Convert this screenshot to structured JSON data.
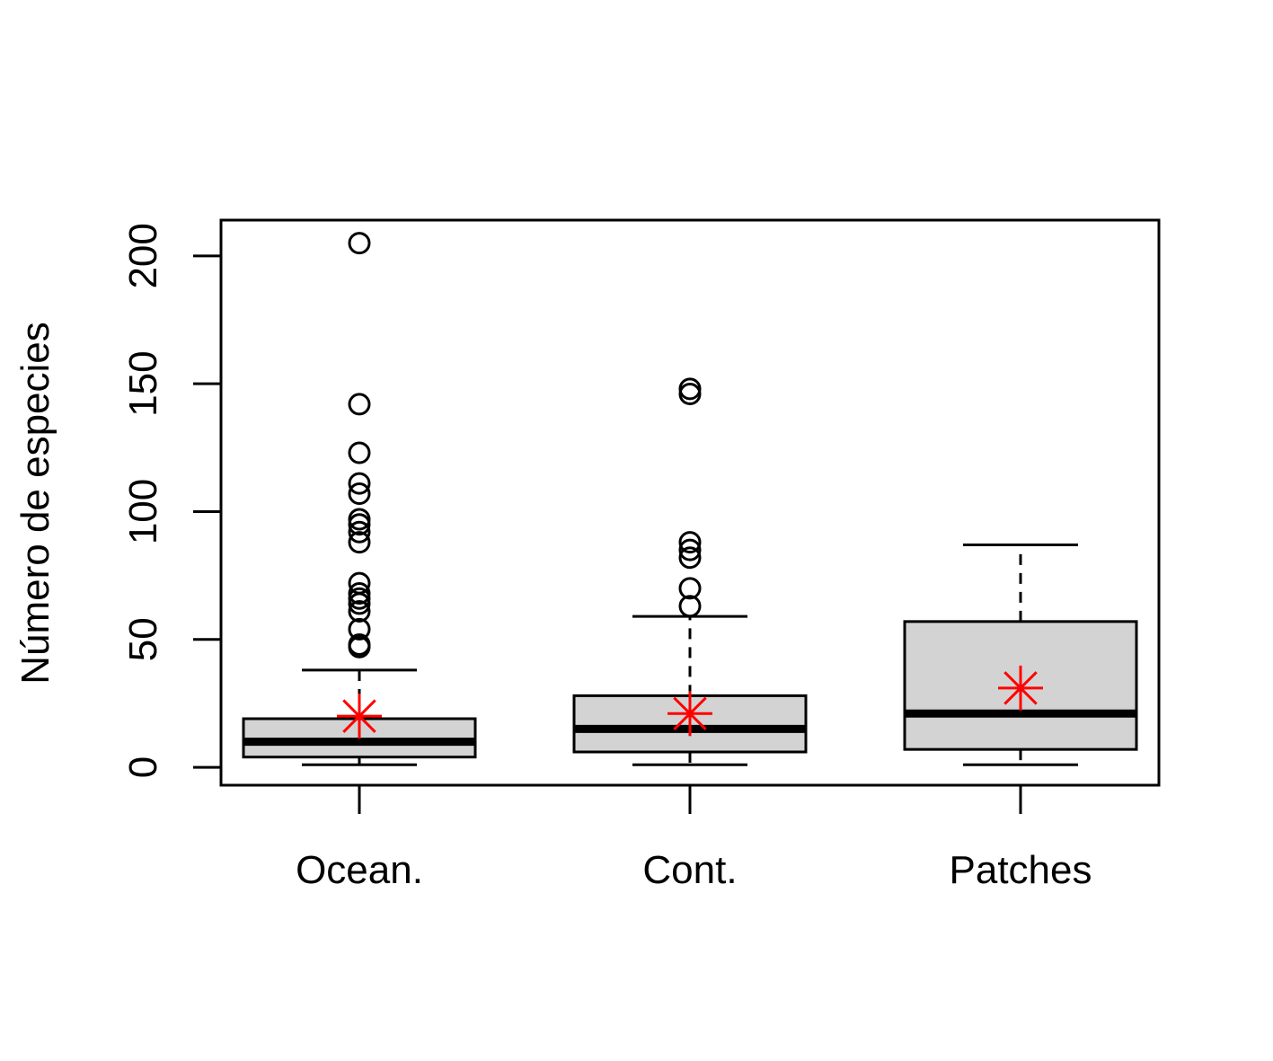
{
  "chart_data": {
    "type": "boxplot",
    "title": "",
    "xlabel": "",
    "ylabel": "Número de especies",
    "ylim": [
      -7,
      214
    ],
    "y_ticks": [
      0,
      50,
      100,
      150,
      200
    ],
    "y_tick_labels": [
      "0",
      "50",
      "100",
      "150",
      "200"
    ],
    "grid": false,
    "legend": "none",
    "categories": [
      "Ocean.",
      "Cont.",
      "Patches"
    ],
    "colors": {
      "box_fill": "#d3d3d3",
      "box_stroke": "#000000",
      "median": "#000000",
      "mean_marker": "#ff0000",
      "outlier": "#000000"
    },
    "series": [
      {
        "category": "Ocean.",
        "whisker_low": 1,
        "q1": 4,
        "median": 10,
        "q3": 19,
        "whisker_high": 38,
        "mean": 20,
        "outliers": [
          205,
          142,
          123,
          111,
          107,
          97,
          95,
          92,
          88,
          72,
          68,
          66,
          64,
          61,
          54,
          48,
          47
        ]
      },
      {
        "category": "Cont.",
        "whisker_low": 1,
        "q1": 6,
        "median": 15,
        "q3": 28,
        "whisker_high": 59,
        "mean": 21,
        "outliers": [
          148,
          146,
          88,
          85,
          82,
          70,
          63
        ]
      },
      {
        "category": "Patches",
        "whisker_low": 1,
        "q1": 7,
        "median": 21,
        "q3": 57,
        "whisker_high": 87,
        "mean": 31,
        "outliers": []
      }
    ]
  }
}
